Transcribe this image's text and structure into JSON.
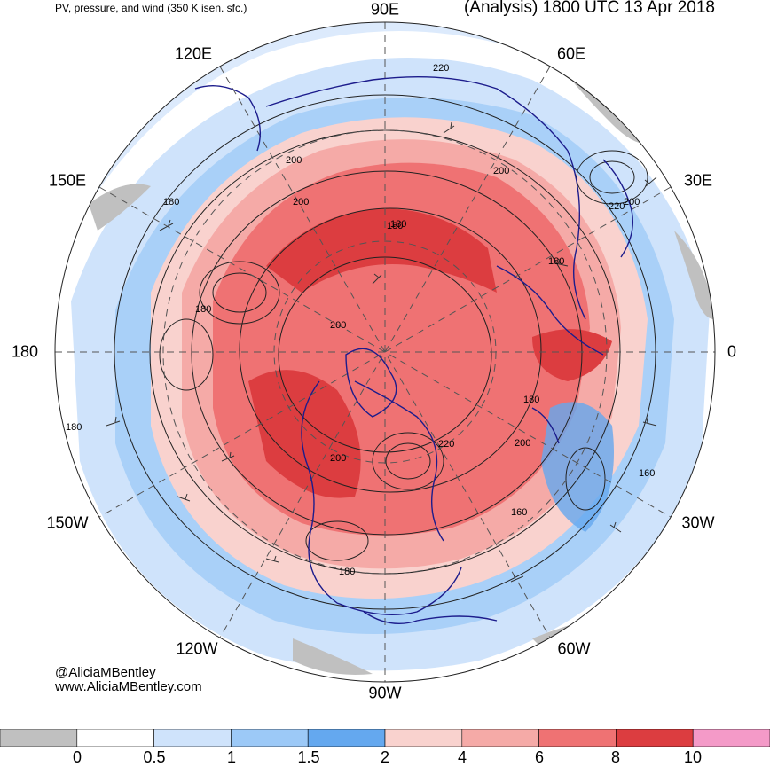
{
  "header": {
    "left_title": "PV, pressure, and wind (350 K isen. sfc.)",
    "right_title": "(Analysis) 1800 UTC 13 Apr 2018"
  },
  "longitude_labels": [
    {
      "label": "90E",
      "angle_deg": 90
    },
    {
      "label": "60E",
      "angle_deg": 60
    },
    {
      "label": "30E",
      "angle_deg": 30
    },
    {
      "label": "0",
      "angle_deg": 0
    },
    {
      "label": "30W",
      "angle_deg": -30
    },
    {
      "label": "60W",
      "angle_deg": -60
    },
    {
      "label": "90W",
      "angle_deg": -90
    },
    {
      "label": "120W",
      "angle_deg": -120
    },
    {
      "label": "150W",
      "angle_deg": -150
    },
    {
      "label": "180",
      "angle_deg": 180
    },
    {
      "label": "150E",
      "angle_deg": 150
    },
    {
      "label": "120E",
      "angle_deg": 120
    }
  ],
  "contour_labels": [
    "220",
    "200",
    "200",
    "200",
    "220",
    "180",
    "180",
    "180",
    "200",
    "180",
    "180",
    "220",
    "200",
    "200",
    "180",
    "160",
    "160",
    "180",
    "200",
    "180"
  ],
  "credit": {
    "handle": "@AliciaMBentley",
    "website": "www.AliciaMBentley.com"
  },
  "colorbar": {
    "labels": [
      "0",
      "0.5",
      "1",
      "1.5",
      "2",
      "4",
      "6",
      "8",
      "10"
    ],
    "colors": [
      "#c0c0c0",
      "#ffffff",
      "#cfe3fb",
      "#9cc9f7",
      "#64a8ef",
      "#f9d2ce",
      "#f5aaa7",
      "#ef7273",
      "#dc3d40",
      "#f49ac8"
    ]
  },
  "colors": {
    "coastline": "#1c1c8c",
    "contour": "#222222",
    "grid": "#555555",
    "ocean_light_blue": "#cfe3fb",
    "mid_blue": "#9cc9f7",
    "pv_red": "#ef7273",
    "pv_pink": "#f5aaa7"
  }
}
